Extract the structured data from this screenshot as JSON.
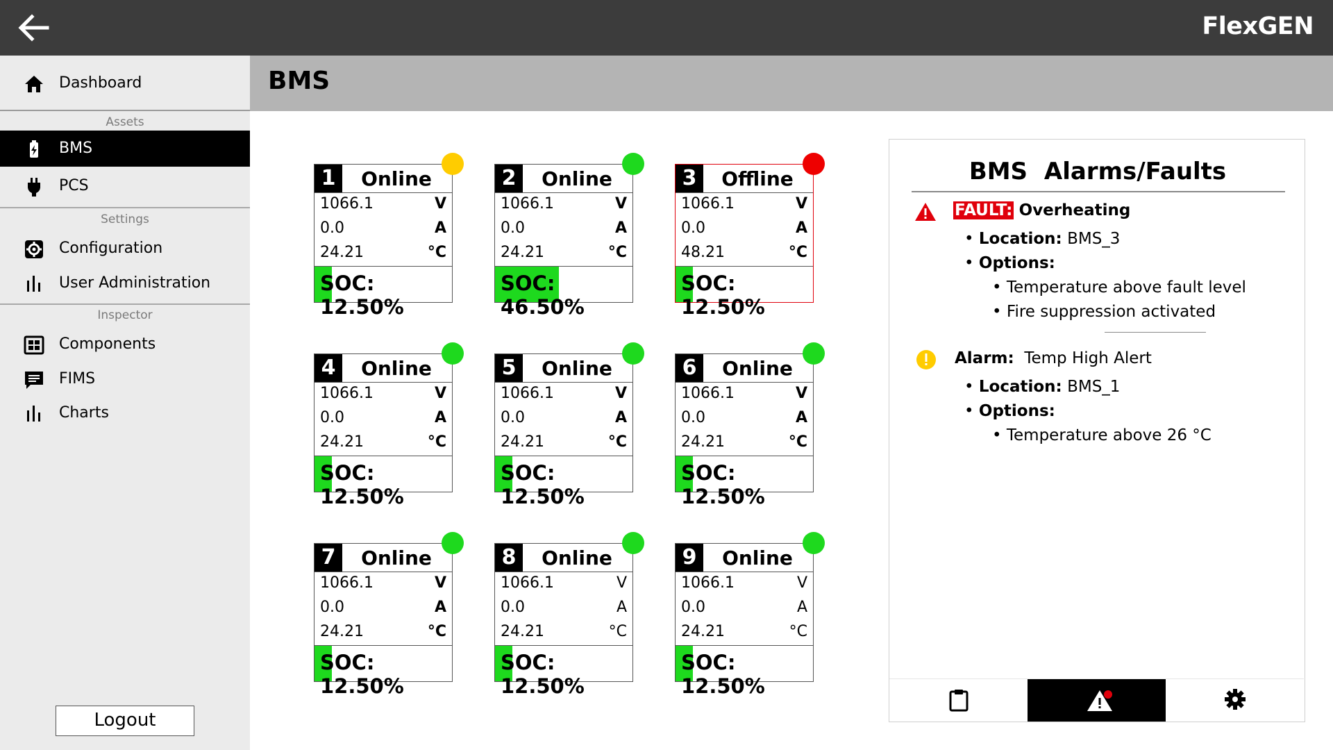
{
  "app": {
    "brand": "FlexGEN"
  },
  "sidebar": {
    "dashboard_label": "Dashboard",
    "sections": {
      "assets": "Assets",
      "settings": "Settings",
      "inspector": "Inspector"
    },
    "items": {
      "bms": "BMS",
      "pcs": "PCS",
      "configuration": "Configuration",
      "user_admin": "User Administration",
      "components": "Components",
      "fims": "FIMS",
      "charts": "Charts"
    },
    "logout_label": "Logout"
  },
  "page": {
    "title": "BMS"
  },
  "cards": [
    {
      "num": "1",
      "status": "Online",
      "voltage": "1066.1",
      "current": "0.0",
      "temp": "24.21",
      "soc_label": "SOC: 12.50%",
      "soc": 0.125,
      "dot_color": "#ffcc00"
    },
    {
      "num": "2",
      "status": "Online",
      "voltage": "1066.1",
      "current": "0.0",
      "temp": "24.21",
      "soc_label": "SOC: 46.50%",
      "soc": 0.465,
      "dot_color": "#1ed91e"
    },
    {
      "num": "3",
      "status": "Offline",
      "voltage": "1066.1",
      "current": "0.0",
      "temp": "48.21",
      "soc_label": "SOC: 12.50%",
      "soc": 0.125,
      "dot_color": "#ee0000"
    },
    {
      "num": "4",
      "status": "Online",
      "voltage": "1066.1",
      "current": "0.0",
      "temp": "24.21",
      "soc_label": "SOC: 12.50%",
      "soc": 0.125,
      "dot_color": "#1ed91e"
    },
    {
      "num": "5",
      "status": "Online",
      "voltage": "1066.1",
      "current": "0.0",
      "temp": "24.21",
      "soc_label": "SOC: 12.50%",
      "soc": 0.125,
      "dot_color": "#1ed91e"
    },
    {
      "num": "6",
      "status": "Online",
      "voltage": "1066.1",
      "current": "0.0",
      "temp": "24.21",
      "soc_label": "SOC: 12.50%",
      "soc": 0.125,
      "dot_color": "#1ed91e"
    },
    {
      "num": "7",
      "status": "Online",
      "voltage": "1066.1",
      "current": "0.0",
      "temp": "24.21",
      "soc_label": "SOC: 12.50%",
      "soc": 0.125,
      "dot_color": "#1ed91e"
    },
    {
      "num": "8",
      "status": "Online",
      "voltage": "1066.1",
      "current": "0.0",
      "temp": "24.21",
      "soc_label": "SOC: 12.50%",
      "soc": 0.125,
      "dot_color": "#1ed91e"
    },
    {
      "num": "9",
      "status": "Online",
      "voltage": "1066.1",
      "current": "0.0",
      "temp": "24.21",
      "soc_label": "SOC: 12.50%",
      "soc": 0.125,
      "dot_color": "#1ed91e"
    }
  ],
  "units": {
    "voltage": "V",
    "current": "A",
    "temp": "°C"
  },
  "alarms": {
    "title": "BMS  Alarms/Faults",
    "fault": {
      "tag": "FAULT:",
      "name": "Overheating",
      "location_label": "Location:",
      "location": "BMS_3",
      "options_label": "Options:",
      "options": [
        "Temperature above fault level",
        "Fire suppression activated"
      ]
    },
    "alarm": {
      "label": "Alarm:",
      "name": "Temp High Alert",
      "location_label": "Location:",
      "location": "BMS_1",
      "options_label": "Options:",
      "options": [
        "Temperature above 26 °C"
      ]
    },
    "footer_icons": [
      "clipboard-icon",
      "warning-icon",
      "gear-icon"
    ]
  },
  "colors": {
    "soc_fill": "#1ed91e",
    "fault_red": "#e0000b",
    "alarm_yellow": "#ffcc00"
  }
}
